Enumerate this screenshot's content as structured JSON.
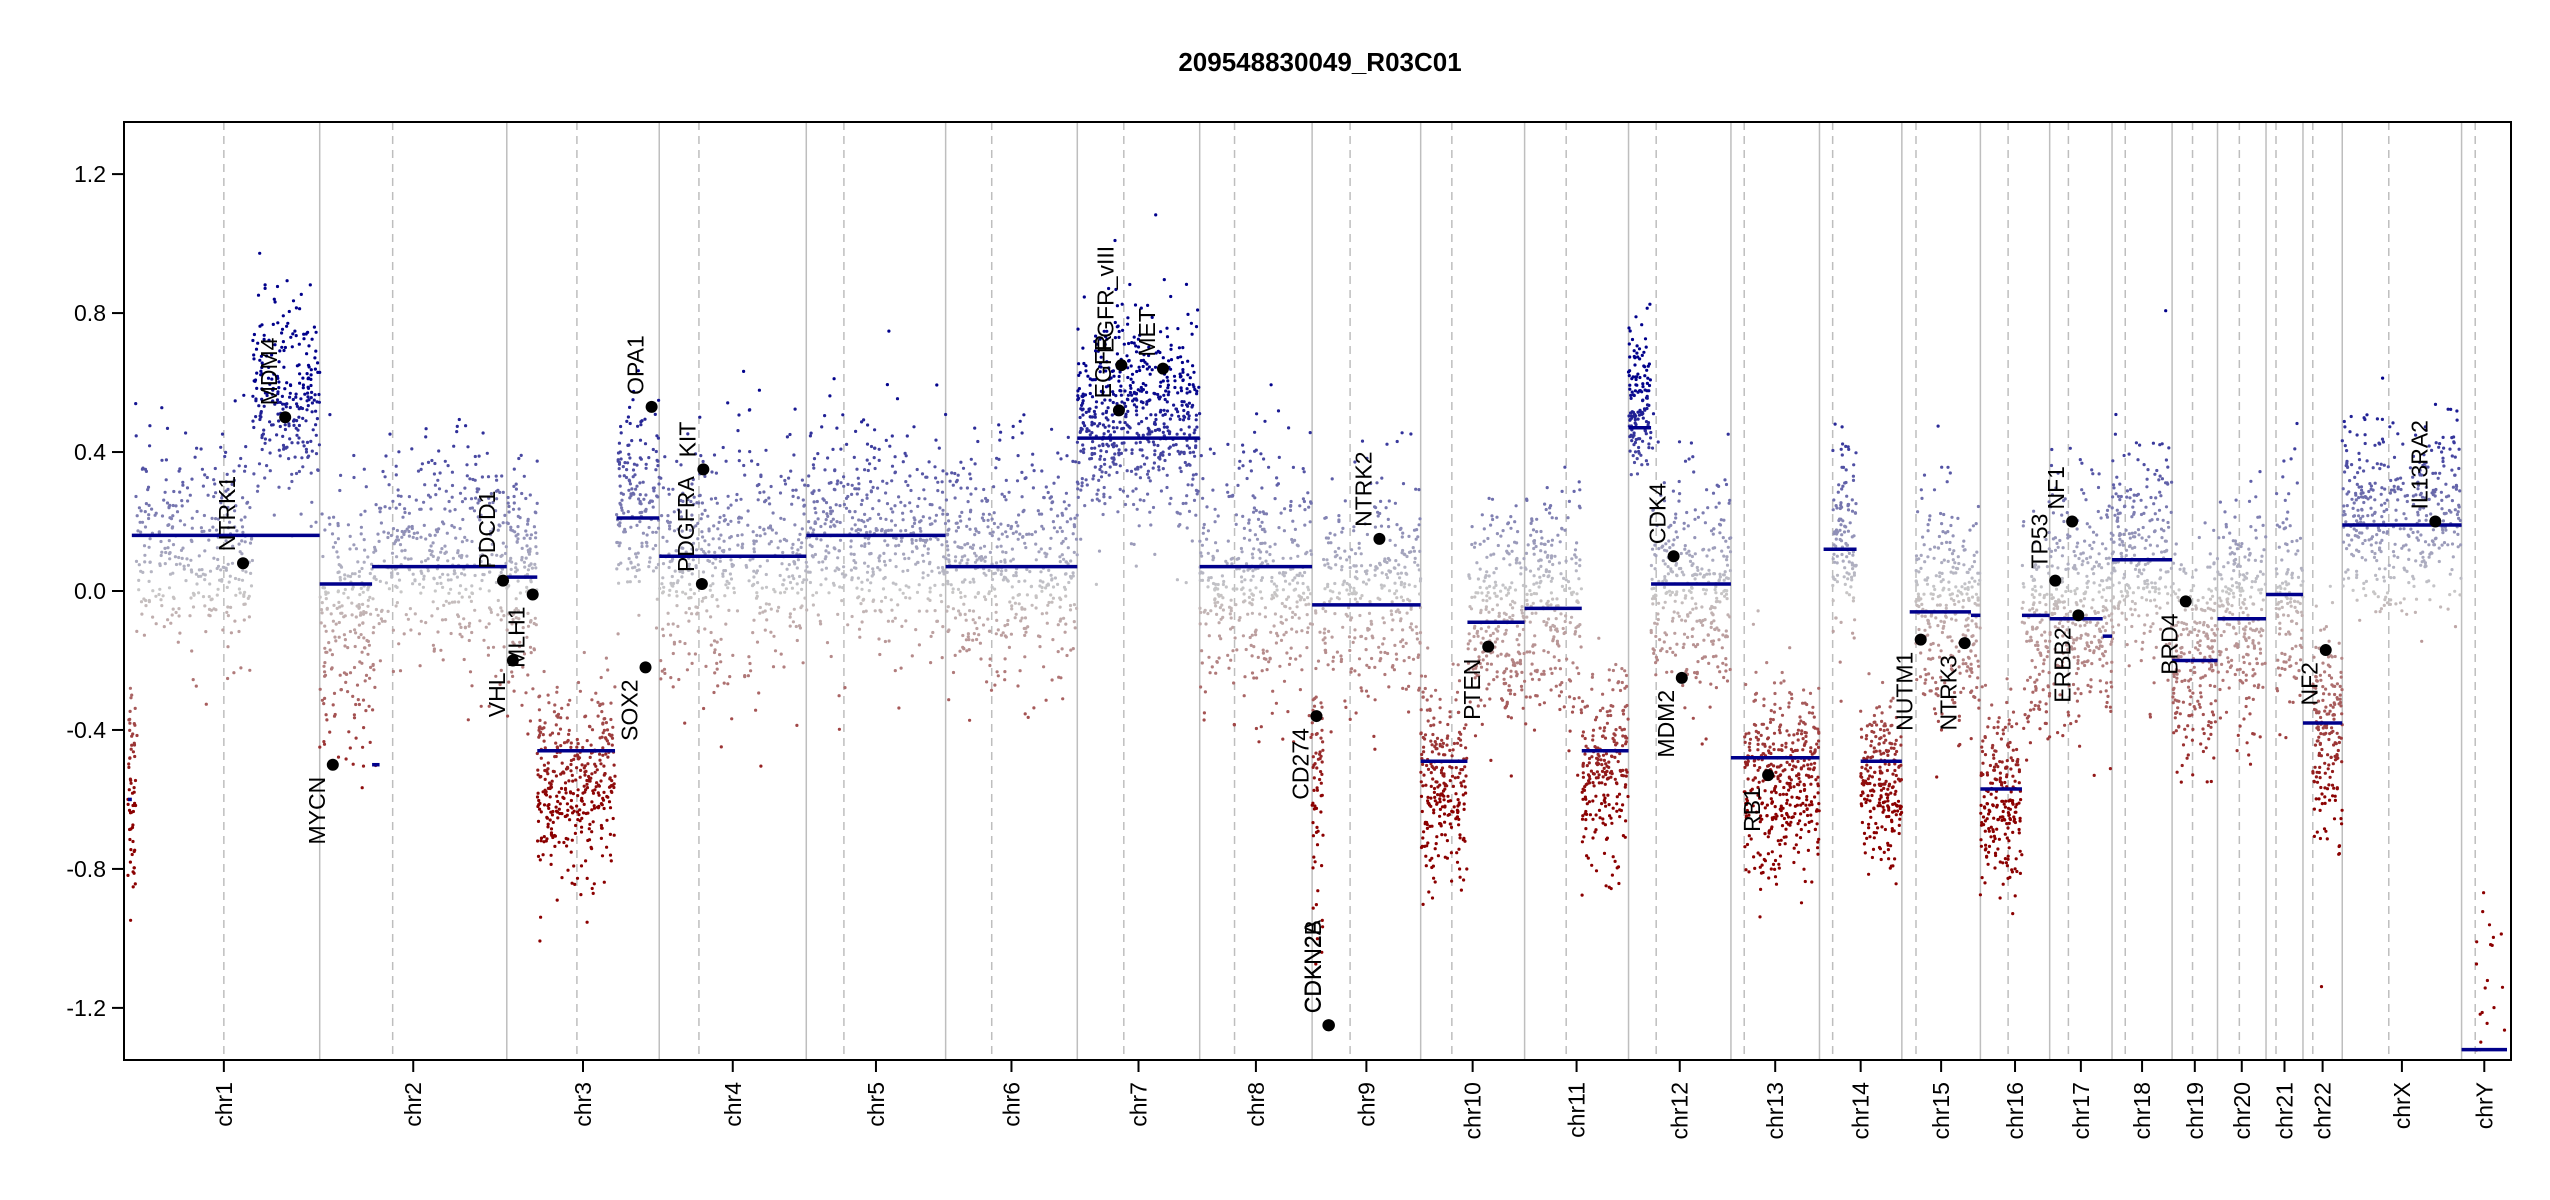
{
  "chart_data": {
    "type": "scatter",
    "title": "209548830049_R03C01",
    "xlabel": "",
    "ylabel": "",
    "ylim": [
      -1.35,
      1.35
    ],
    "yticks": [
      -1.2,
      -0.8,
      -0.4,
      0.0,
      0.4,
      0.8,
      1.2
    ],
    "ytick_labels": [
      "-1.2",
      "-0.8",
      "-0.4",
      "0.0",
      "0.4",
      "0.8",
      "1.2"
    ],
    "colors": {
      "gain": "#00008B",
      "loss": "#8B0000",
      "neutral": "#C8C8C8",
      "segment": "#00008B",
      "chrom_line": "#BEBEBE"
    },
    "chromosomes": [
      {
        "name": "chr1",
        "size": 249,
        "centromere": 0.5
      },
      {
        "name": "chr2",
        "size": 243,
        "centromere": 0.39
      },
      {
        "name": "chr3",
        "size": 198,
        "centromere": 0.46
      },
      {
        "name": "chr4",
        "size": 191,
        "centromere": 0.27
      },
      {
        "name": "chr5",
        "size": 181,
        "centromere": 0.27
      },
      {
        "name": "chr6",
        "size": 171,
        "centromere": 0.35
      },
      {
        "name": "chr7",
        "size": 159,
        "centromere": 0.38
      },
      {
        "name": "chr8",
        "size": 146,
        "centromere": 0.31
      },
      {
        "name": "chr9",
        "size": 141,
        "centromere": 0.35
      },
      {
        "name": "chr10",
        "size": 135,
        "centromere": 0.3
      },
      {
        "name": "chr11",
        "size": 135,
        "centromere": 0.4
      },
      {
        "name": "chr12",
        "size": 133,
        "centromere": 0.27
      },
      {
        "name": "chr13",
        "size": 115,
        "centromere": 0.15
      },
      {
        "name": "chr14",
        "size": 107,
        "centromere": 0.16
      },
      {
        "name": "chr15",
        "size": 102,
        "centromere": 0.18
      },
      {
        "name": "chr16",
        "size": 90,
        "centromere": 0.4
      },
      {
        "name": "chr17",
        "size": 81,
        "centromere": 0.3
      },
      {
        "name": "chr18",
        "size": 78,
        "centromere": 0.22
      },
      {
        "name": "chr19",
        "size": 59,
        "centromere": 0.45
      },
      {
        "name": "chr20",
        "size": 63,
        "centromere": 0.45
      },
      {
        "name": "chr21",
        "size": 48,
        "centromere": 0.27
      },
      {
        "name": "chr22",
        "size": 51,
        "centromere": 0.25
      },
      {
        "name": "chrX",
        "size": 155,
        "centromere": 0.39
      },
      {
        "name": "chrY",
        "size": 59,
        "centromere": 0.3
      }
    ],
    "segments": [
      {
        "chr": "chr1",
        "start": 0.0,
        "end": 0.02,
        "value": -0.6
      },
      {
        "chr": "chr1",
        "start": 0.02,
        "end": 1.0,
        "value": 0.16
      },
      {
        "chr": "chr2",
        "start": 0.0,
        "end": 0.28,
        "value": 0.02
      },
      {
        "chr": "chr2",
        "start": 0.28,
        "end": 0.32,
        "value": -0.5
      },
      {
        "chr": "chr2",
        "start": 0.28,
        "end": 1.0,
        "value": 0.07
      },
      {
        "chr": "chr3",
        "start": 0.0,
        "end": 0.2,
        "value": 0.04
      },
      {
        "chr": "chr3",
        "start": 0.2,
        "end": 0.71,
        "value": -0.46
      },
      {
        "chr": "chr3",
        "start": 0.72,
        "end": 1.0,
        "value": 0.21
      },
      {
        "chr": "chr4",
        "start": 0.0,
        "end": 1.0,
        "value": 0.1
      },
      {
        "chr": "chr5",
        "start": 0.0,
        "end": 1.0,
        "value": 0.16
      },
      {
        "chr": "chr6",
        "start": 0.0,
        "end": 1.0,
        "value": 0.07
      },
      {
        "chr": "chr7",
        "start": 0.0,
        "end": 1.0,
        "value": 0.44
      },
      {
        "chr": "chr8",
        "start": 0.0,
        "end": 1.0,
        "value": 0.07
      },
      {
        "chr": "chr9",
        "start": 0.0,
        "end": 1.0,
        "value": -0.04
      },
      {
        "chr": "chr10",
        "start": 0.0,
        "end": 0.45,
        "value": -0.49
      },
      {
        "chr": "chr10",
        "start": 0.45,
        "end": 1.0,
        "value": -0.09
      },
      {
        "chr": "chr11",
        "start": 0.0,
        "end": 0.55,
        "value": -0.05
      },
      {
        "chr": "chr11",
        "start": 0.55,
        "end": 1.0,
        "value": -0.46
      },
      {
        "chr": "chr12",
        "start": 0.0,
        "end": 0.22,
        "value": 0.47
      },
      {
        "chr": "chr12",
        "start": 0.22,
        "end": 1.0,
        "value": 0.02
      },
      {
        "chr": "chr13",
        "start": 0.0,
        "end": 1.0,
        "value": -0.48
      },
      {
        "chr": "chr14",
        "start": 0.05,
        "end": 0.45,
        "value": 0.12
      },
      {
        "chr": "chr14",
        "start": 0.5,
        "end": 1.0,
        "value": -0.49
      },
      {
        "chr": "chr15",
        "start": 0.1,
        "end": 0.88,
        "value": -0.06
      },
      {
        "chr": "chr15",
        "start": 0.88,
        "end": 1.0,
        "value": -0.07
      },
      {
        "chr": "chr16",
        "start": 0.0,
        "end": 0.6,
        "value": -0.57
      },
      {
        "chr": "chr16",
        "start": 0.6,
        "end": 1.0,
        "value": -0.07
      },
      {
        "chr": "chr17",
        "start": 0.0,
        "end": 0.85,
        "value": -0.08
      },
      {
        "chr": "chr17",
        "start": 0.85,
        "end": 1.0,
        "value": -0.13
      },
      {
        "chr": "chr18",
        "start": 0.0,
        "end": 1.0,
        "value": 0.09
      },
      {
        "chr": "chr19",
        "start": 0.0,
        "end": 0.4,
        "value": -0.2
      },
      {
        "chr": "chr19",
        "start": 0.4,
        "end": 1.0,
        "value": -0.2
      },
      {
        "chr": "chr20",
        "start": 0.0,
        "end": 1.0,
        "value": -0.08
      },
      {
        "chr": "chr21",
        "start": 0.0,
        "end": 1.0,
        "value": -0.01
      },
      {
        "chr": "chr22",
        "start": 0.0,
        "end": 1.0,
        "value": -0.38
      },
      {
        "chr": "chrX",
        "start": 0.0,
        "end": 1.0,
        "value": 0.19
      },
      {
        "chr": "chrY",
        "start": 0.0,
        "end": 1.0,
        "value": -1.32
      }
    ],
    "genes": [
      {
        "name": "NTRK1",
        "chr": "chr1",
        "pos": 0.6,
        "value": 0.08
      },
      {
        "name": "MDM4",
        "chr": "chr1",
        "pos": 0.82,
        "value": 0.5
      },
      {
        "name": "MYCN",
        "chr": "chr2",
        "pos": 0.07,
        "value": -0.5
      },
      {
        "name": "PDCD1",
        "chr": "chr2",
        "pos": 0.98,
        "value": 0.03
      },
      {
        "name": "VHL",
        "chr": "chr3",
        "pos": 0.04,
        "value": -0.2
      },
      {
        "name": "MLH1",
        "chr": "chr3",
        "pos": 0.17,
        "value": -0.01
      },
      {
        "name": "SOX2",
        "chr": "chr3",
        "pos": 0.91,
        "value": -0.22
      },
      {
        "name": "OPA1",
        "chr": "chr3",
        "pos": 0.95,
        "value": 0.53
      },
      {
        "name": "PDGFRA",
        "chr": "chr4",
        "pos": 0.29,
        "value": 0.02
      },
      {
        "name": "KIT",
        "chr": "chr4",
        "pos": 0.3,
        "value": 0.35
      },
      {
        "name": "EGFR",
        "chr": "chr7",
        "pos": 0.34,
        "value": 0.52
      },
      {
        "name": "EGFR_vIII",
        "chr": "chr7",
        "pos": 0.36,
        "value": 0.65
      },
      {
        "name": "MET",
        "chr": "chr7",
        "pos": 0.7,
        "value": 0.64
      },
      {
        "name": "CD274",
        "chr": "chr9",
        "pos": 0.04,
        "value": -0.36
      },
      {
        "name": "CDKN2A",
        "chr": "chr9",
        "pos": 0.15,
        "value": -1.25
      },
      {
        "name": "CDKN2B",
        "chr": "chr9",
        "pos": 0.155,
        "value": -1.25
      },
      {
        "name": "NTRK2",
        "chr": "chr9",
        "pos": 0.62,
        "value": 0.15
      },
      {
        "name": "PTEN",
        "chr": "chr10",
        "pos": 0.65,
        "value": -0.16
      },
      {
        "name": "CDK4",
        "chr": "chr12",
        "pos": 0.44,
        "value": 0.1
      },
      {
        "name": "MDM2",
        "chr": "chr12",
        "pos": 0.52,
        "value": -0.25
      },
      {
        "name": "RB1",
        "chr": "chr13",
        "pos": 0.42,
        "value": -0.53
      },
      {
        "name": "NUTM1",
        "chr": "chr15",
        "pos": 0.24,
        "value": -0.14
      },
      {
        "name": "NTRK3",
        "chr": "chr15",
        "pos": 0.8,
        "value": -0.15
      },
      {
        "name": "TP53",
        "chr": "chr17",
        "pos": 0.09,
        "value": 0.03
      },
      {
        "name": "NF1",
        "chr": "chr17",
        "pos": 0.36,
        "value": 0.2
      },
      {
        "name": "ERBB2",
        "chr": "chr17",
        "pos": 0.46,
        "value": -0.07
      },
      {
        "name": "BRD4",
        "chr": "chr19",
        "pos": 0.3,
        "value": -0.03
      },
      {
        "name": "NF2",
        "chr": "chr22",
        "pos": 0.58,
        "value": -0.17
      },
      {
        "name": "IL13RA2",
        "chr": "chrX",
        "pos": 0.78,
        "value": 0.2
      }
    ],
    "gene_labels": [
      {
        "text": "NTRK1",
        "chr": "chr1",
        "pos": 0.6,
        "anchor": 0.08,
        "side": "above"
      },
      {
        "text": "MDM4",
        "chr": "chr1",
        "pos": 0.82,
        "anchor": 0.5,
        "side": "above"
      },
      {
        "text": "MYCN",
        "chr": "chr2",
        "pos": 0.07,
        "anchor": -0.5,
        "side": "below"
      },
      {
        "text": "PDCD1",
        "chr": "chr2",
        "pos": 0.98,
        "anchor": 0.03,
        "side": "above"
      },
      {
        "text": "VHL",
        "chr": "chr3",
        "pos": 0.04,
        "anchor": -0.2,
        "side": "below"
      },
      {
        "text": "MLH1",
        "chr": "chr3",
        "pos": 0.17,
        "anchor": -0.01,
        "side": "below"
      },
      {
        "text": "SOX2",
        "chr": "chr3",
        "pos": 0.91,
        "anchor": -0.22,
        "side": "below"
      },
      {
        "text": "OPA1",
        "chr": "chr3",
        "pos": 0.95,
        "anchor": 0.53,
        "side": "above"
      },
      {
        "text": "PDGFRA",
        "chr": "chr4",
        "pos": 0.29,
        "anchor": 0.02,
        "side": "above"
      },
      {
        "text": "KIT",
        "chr": "chr4",
        "pos": 0.3,
        "anchor": 0.35,
        "side": "above"
      },
      {
        "text": "EGFR",
        "chr": "chr7",
        "pos": 0.34,
        "anchor": 0.52,
        "side": "above"
      },
      {
        "text": "EGFR_vIII",
        "chr": "chr7",
        "pos": 0.36,
        "anchor": 0.65,
        "side": "above"
      },
      {
        "text": "MET",
        "chr": "chr7",
        "pos": 0.7,
        "anchor": 0.64,
        "side": "above"
      },
      {
        "text": "CD274",
        "chr": "chr9",
        "pos": 0.04,
        "anchor": -0.36,
        "side": "below"
      },
      {
        "text": "CDKN2A",
        "chr": "chr9",
        "pos": 0.15,
        "anchor": -1.25,
        "side": "above"
      },
      {
        "text": "CDKN2B",
        "chr": "chr9",
        "pos": 0.155,
        "anchor": -1.25,
        "side": "above"
      },
      {
        "text": "NTRK2",
        "chr": "chr9",
        "pos": 0.62,
        "anchor": 0.15,
        "side": "above"
      },
      {
        "text": "PTEN",
        "chr": "chr10",
        "pos": 0.65,
        "anchor": -0.16,
        "side": "below"
      },
      {
        "text": "CDK4",
        "chr": "chr12",
        "pos": 0.44,
        "anchor": 0.1,
        "side": "above"
      },
      {
        "text": "MDM2",
        "chr": "chr12",
        "pos": 0.52,
        "anchor": -0.25,
        "side": "below"
      },
      {
        "text": "RB1",
        "chr": "chr13",
        "pos": 0.42,
        "anchor": -0.53,
        "side": "below"
      },
      {
        "text": "NUTM1",
        "chr": "chr15",
        "pos": 0.24,
        "anchor": -0.14,
        "side": "below"
      },
      {
        "text": "NTRK3",
        "chr": "chr15",
        "pos": 0.8,
        "anchor": -0.15,
        "side": "below"
      },
      {
        "text": "TP53",
        "chr": "chr17",
        "pos": 0.09,
        "anchor": 0.03,
        "side": "above"
      },
      {
        "text": "NF1",
        "chr": "chr17",
        "pos": 0.36,
        "anchor": 0.2,
        "side": "above"
      },
      {
        "text": "ERBB2",
        "chr": "chr17",
        "pos": 0.46,
        "anchor": -0.07,
        "side": "below"
      },
      {
        "text": "BRD4",
        "chr": "chr19",
        "pos": 0.3,
        "anchor": -0.03,
        "side": "below"
      },
      {
        "text": "NF2",
        "chr": "chr22",
        "pos": 0.58,
        "anchor": -0.17,
        "side": "below"
      },
      {
        "text": "IL13RA2",
        "chr": "chrX",
        "pos": 0.78,
        "anchor": 0.2,
        "side": "above"
      }
    ],
    "probe_clouds": [
      {
        "chr": "chr1",
        "start": 0.0,
        "end": 0.04,
        "mean": -0.55,
        "spread": 0.3,
        "n": 60
      },
      {
        "chr": "chr1",
        "start": 0.04,
        "end": 0.65,
        "mean": 0.12,
        "spread": 0.28,
        "n": 320
      },
      {
        "chr": "chr1",
        "start": 0.65,
        "end": 1.0,
        "mean": 0.55,
        "spread": 0.25,
        "n": 260
      },
      {
        "chr": "chr2",
        "start": 0.0,
        "end": 0.3,
        "mean": -0.1,
        "spread": 0.35,
        "n": 220
      },
      {
        "chr": "chr2",
        "start": 0.3,
        "end": 1.0,
        "mean": 0.1,
        "spread": 0.3,
        "n": 380
      },
      {
        "chr": "chr3",
        "start": 0.0,
        "end": 0.2,
        "mean": 0.02,
        "spread": 0.3,
        "n": 140
      },
      {
        "chr": "chr3",
        "start": 0.2,
        "end": 0.71,
        "mean": -0.55,
        "spread": 0.25,
        "n": 380
      },
      {
        "chr": "chr3",
        "start": 0.72,
        "end": 1.0,
        "mean": 0.25,
        "spread": 0.28,
        "n": 170
      },
      {
        "chr": "chr4",
        "start": 0.0,
        "end": 1.0,
        "mean": 0.08,
        "spread": 0.32,
        "n": 460
      },
      {
        "chr": "chr5",
        "start": 0.0,
        "end": 1.0,
        "mean": 0.16,
        "spread": 0.3,
        "n": 460
      },
      {
        "chr": "chr6",
        "start": 0.0,
        "end": 1.0,
        "mean": 0.07,
        "spread": 0.32,
        "n": 460
      },
      {
        "chr": "chr7",
        "start": 0.0,
        "end": 1.0,
        "mean": 0.5,
        "spread": 0.28,
        "n": 600
      },
      {
        "chr": "chr8",
        "start": 0.0,
        "end": 1.0,
        "mean": 0.02,
        "spread": 0.35,
        "n": 400
      },
      {
        "chr": "chr9",
        "start": 0.0,
        "end": 0.1,
        "mean": -0.55,
        "spread": 0.35,
        "n": 70
      },
      {
        "chr": "chr9",
        "start": 0.1,
        "end": 1.0,
        "mean": 0.0,
        "spread": 0.3,
        "n": 320
      },
      {
        "chr": "chr10",
        "start": 0.0,
        "end": 0.45,
        "mean": -0.55,
        "spread": 0.25,
        "n": 250
      },
      {
        "chr": "chr10",
        "start": 0.45,
        "end": 1.0,
        "mean": -0.08,
        "spread": 0.28,
        "n": 250
      },
      {
        "chr": "chr11",
        "start": 0.0,
        "end": 0.55,
        "mean": -0.05,
        "spread": 0.3,
        "n": 230
      },
      {
        "chr": "chr11",
        "start": 0.55,
        "end": 1.0,
        "mean": -0.52,
        "spread": 0.25,
        "n": 230
      },
      {
        "chr": "chr12",
        "start": 0.0,
        "end": 0.22,
        "mean": 0.55,
        "spread": 0.2,
        "n": 140
      },
      {
        "chr": "chr12",
        "start": 0.22,
        "end": 1.0,
        "mean": 0.02,
        "spread": 0.3,
        "n": 330
      },
      {
        "chr": "chr13",
        "start": 0.15,
        "end": 1.0,
        "mean": -0.55,
        "spread": 0.25,
        "n": 400
      },
      {
        "chr": "chr14",
        "start": 0.16,
        "end": 0.45,
        "mean": 0.15,
        "spread": 0.25,
        "n": 120
      },
      {
        "chr": "chr14",
        "start": 0.5,
        "end": 1.0,
        "mean": -0.55,
        "spread": 0.22,
        "n": 230
      },
      {
        "chr": "chr15",
        "start": 0.18,
        "end": 1.0,
        "mean": -0.05,
        "spread": 0.3,
        "n": 300
      },
      {
        "chr": "chr16",
        "start": 0.0,
        "end": 0.6,
        "mean": -0.6,
        "spread": 0.22,
        "n": 220
      },
      {
        "chr": "chr16",
        "start": 0.6,
        "end": 1.0,
        "mean": -0.1,
        "spread": 0.28,
        "n": 120
      },
      {
        "chr": "chr17",
        "start": 0.0,
        "end": 1.0,
        "mean": -0.05,
        "spread": 0.3,
        "n": 300
      },
      {
        "chr": "chr18",
        "start": 0.0,
        "end": 1.0,
        "mean": 0.1,
        "spread": 0.3,
        "n": 250
      },
      {
        "chr": "chr19",
        "start": 0.0,
        "end": 1.0,
        "mean": -0.2,
        "spread": 0.28,
        "n": 220
      },
      {
        "chr": "chr20",
        "start": 0.0,
        "end": 1.0,
        "mean": -0.05,
        "spread": 0.3,
        "n": 220
      },
      {
        "chr": "chr21",
        "start": 0.27,
        "end": 1.0,
        "mean": 0.0,
        "spread": 0.3,
        "n": 120
      },
      {
        "chr": "chr22",
        "start": 0.25,
        "end": 1.0,
        "mean": -0.4,
        "spread": 0.28,
        "n": 180
      },
      {
        "chr": "chrX",
        "start": 0.0,
        "end": 1.0,
        "mean": 0.22,
        "spread": 0.25,
        "n": 420
      },
      {
        "chr": "chrY",
        "start": 0.3,
        "end": 1.0,
        "mean": -1.1,
        "spread": 0.25,
        "n": 20
      }
    ]
  }
}
